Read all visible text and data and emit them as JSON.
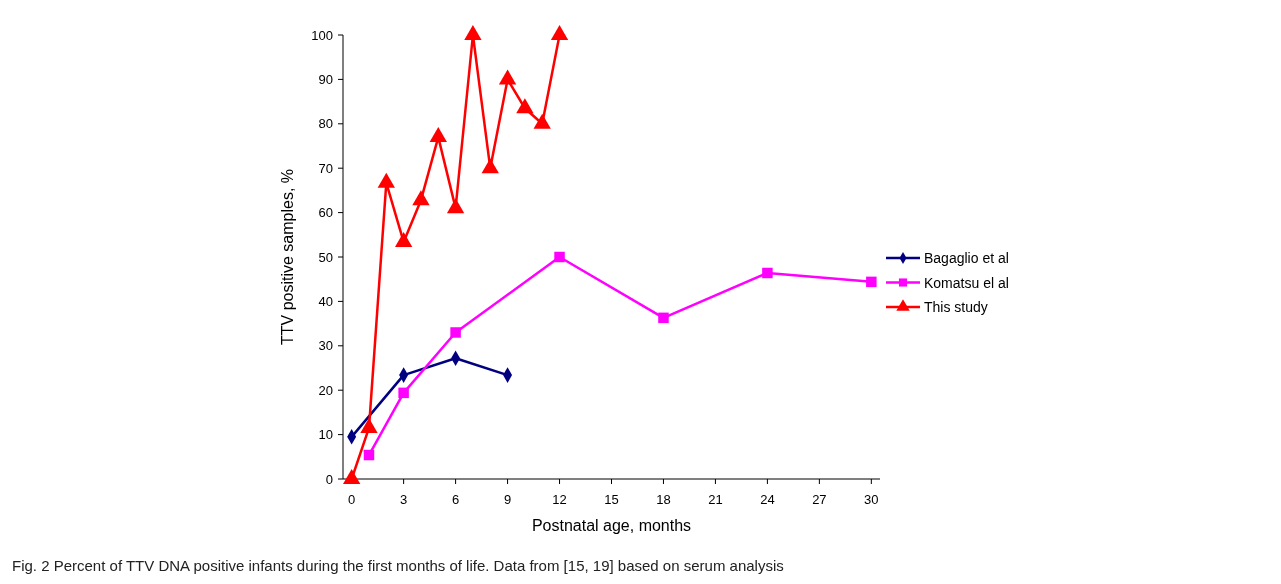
{
  "chart_data": {
    "type": "line",
    "xlabel": "Postnatal age, months",
    "ylabel": "TTV positive samples, %",
    "xlim": [
      -0.5,
      30.5
    ],
    "ylim": [
      0,
      100
    ],
    "xticks": [
      0,
      3,
      6,
      9,
      12,
      15,
      18,
      21,
      24,
      27,
      30
    ],
    "yticks": [
      0,
      10,
      20,
      30,
      40,
      50,
      60,
      70,
      80,
      90,
      100
    ],
    "grid": false,
    "legend": "right",
    "series": [
      {
        "name": "Bagaglio et al",
        "color": "#000080",
        "marker": "diamond",
        "x": [
          0,
          3,
          6,
          9
        ],
        "values": [
          9.5,
          23.4,
          27.2,
          23.4
        ]
      },
      {
        "name": "Komatsu el al",
        "color": "#ff00ff",
        "marker": "square",
        "x": [
          1,
          3,
          6,
          12,
          18,
          24,
          30
        ],
        "values": [
          5.4,
          19.4,
          33,
          50,
          36.3,
          46.4,
          44.4
        ]
      },
      {
        "name": "This study",
        "color": "#ff0000",
        "marker": "triangle",
        "x": [
          0,
          1,
          2,
          3,
          4,
          5,
          6,
          7,
          8,
          9,
          10,
          11,
          12
        ],
        "values": [
          0,
          11.5,
          66.7,
          53.4,
          62.8,
          77,
          61,
          100,
          70,
          90,
          83.5,
          80,
          100
        ]
      }
    ],
    "annotations": [
      "Fig. 2 Percent of TTV DNA positive infants during the first months of life. Data from [15, 19] based on serum analysis"
    ]
  }
}
